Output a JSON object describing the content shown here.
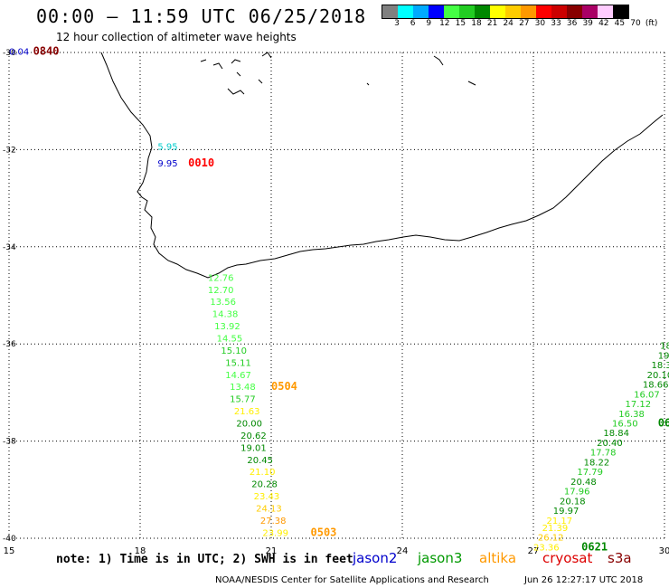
{
  "header": {
    "title": "00:00 – 11:59 UTC 06/25/2018",
    "subtitle": "12 hour collection of altimeter wave heights"
  },
  "legend": {
    "colors": [
      "#808080",
      "#00ffff",
      "#00aaff",
      "#0000ff",
      "#44ff44",
      "#22cc22",
      "#008800",
      "#ffff00",
      "#ffcc00",
      "#ff9900",
      "#ff0000",
      "#cc0000",
      "#880000",
      "#aa0066",
      "#ffccff",
      "#000000"
    ],
    "labels": [
      "3",
      "6",
      "9",
      "12",
      "15",
      "18",
      "21",
      "24",
      "27",
      "30",
      "33",
      "36",
      "39",
      "42",
      "45",
      "70",
      "(ft)"
    ]
  },
  "axes": {
    "lon_ticks": [
      "15",
      "18",
      "21",
      "24",
      "27",
      "30"
    ],
    "lat_ticks": [
      "-30",
      "-32",
      "-34",
      "-36",
      "-38",
      "-40"
    ]
  },
  "observations": [
    {
      "text": "0.04",
      "color": "#0000cc",
      "lon": 15.0,
      "lat": -30.05
    },
    {
      "text": "5.95",
      "color": "#00cccc",
      "lon": 18.4,
      "lat": -32.0
    },
    {
      "text": "9.95",
      "color": "#0000cc",
      "lon": 18.4,
      "lat": -32.35
    },
    {
      "text": "12.76",
      "color": "#44ff44",
      "lon": 19.55,
      "lat": -34.7
    },
    {
      "text": "12.70",
      "color": "#44ff44",
      "lon": 19.55,
      "lat": -34.95
    },
    {
      "text": "13.56",
      "color": "#44ff44",
      "lon": 19.6,
      "lat": -35.2
    },
    {
      "text": "14.38",
      "color": "#44ff44",
      "lon": 19.65,
      "lat": -35.45
    },
    {
      "text": "13.92",
      "color": "#44ff44",
      "lon": 19.7,
      "lat": -35.7
    },
    {
      "text": "14.55",
      "color": "#44ff44",
      "lon": 19.75,
      "lat": -35.95
    },
    {
      "text": "15.10",
      "color": "#22cc22",
      "lon": 19.85,
      "lat": -36.2
    },
    {
      "text": "15.11",
      "color": "#22cc22",
      "lon": 19.95,
      "lat": -36.45
    },
    {
      "text": "14.67",
      "color": "#44ff44",
      "lon": 19.95,
      "lat": -36.7
    },
    {
      "text": "13.48",
      "color": "#44ff44",
      "lon": 20.05,
      "lat": -36.95
    },
    {
      "text": "15.77",
      "color": "#22cc22",
      "lon": 20.05,
      "lat": -37.2
    },
    {
      "text": "21.63",
      "color": "#ffee00",
      "lon": 20.15,
      "lat": -37.45
    },
    {
      "text": "20.00",
      "color": "#008800",
      "lon": 20.2,
      "lat": -37.7
    },
    {
      "text": "20.62",
      "color": "#008800",
      "lon": 20.3,
      "lat": -37.95
    },
    {
      "text": "19.01",
      "color": "#008800",
      "lon": 20.3,
      "lat": -38.2
    },
    {
      "text": "20.45",
      "color": "#008800",
      "lon": 20.45,
      "lat": -38.45
    },
    {
      "text": "21.10",
      "color": "#ffee00",
      "lon": 20.5,
      "lat": -38.7
    },
    {
      "text": "20.28",
      "color": "#008800",
      "lon": 20.55,
      "lat": -38.95
    },
    {
      "text": "23.43",
      "color": "#ffee00",
      "lon": 20.6,
      "lat": -39.2
    },
    {
      "text": "24.13",
      "color": "#ffcc00",
      "lon": 20.65,
      "lat": -39.45
    },
    {
      "text": "27.38",
      "color": "#ff9900",
      "lon": 20.75,
      "lat": -39.7
    },
    {
      "text": "23.99",
      "color": "#ffee00",
      "lon": 20.8,
      "lat": -39.95
    },
    {
      "text": "18",
      "color": "#008800",
      "lon": 29.9,
      "lat": -36.1
    },
    {
      "text": "19.",
      "color": "#008800",
      "lon": 29.85,
      "lat": -36.3
    },
    {
      "text": "18.3",
      "color": "#008800",
      "lon": 29.7,
      "lat": -36.5
    },
    {
      "text": "20.10",
      "color": "#008800",
      "lon": 29.6,
      "lat": -36.7
    },
    {
      "text": "18.66",
      "color": "#008800",
      "lon": 29.5,
      "lat": -36.9
    },
    {
      "text": "16.07",
      "color": "#22cc22",
      "lon": 29.3,
      "lat": -37.1
    },
    {
      "text": "17.12",
      "color": "#22cc22",
      "lon": 29.1,
      "lat": -37.3
    },
    {
      "text": "16.38",
      "color": "#22cc22",
      "lon": 28.95,
      "lat": -37.5
    },
    {
      "text": "16.50",
      "color": "#22cc22",
      "lon": 28.8,
      "lat": -37.7
    },
    {
      "text": "18.84",
      "color": "#008800",
      "lon": 28.6,
      "lat": -37.9
    },
    {
      "text": "20.40",
      "color": "#008800",
      "lon": 28.45,
      "lat": -38.1
    },
    {
      "text": "17.78",
      "color": "#22cc22",
      "lon": 28.3,
      "lat": -38.3
    },
    {
      "text": "18.22",
      "color": "#008800",
      "lon": 28.15,
      "lat": -38.5
    },
    {
      "text": "17.79",
      "color": "#22cc22",
      "lon": 28.0,
      "lat": -38.7
    },
    {
      "text": "20.48",
      "color": "#008800",
      "lon": 27.85,
      "lat": -38.9
    },
    {
      "text": "17.96",
      "color": "#22cc22",
      "lon": 27.7,
      "lat": -39.1
    },
    {
      "text": "20.18",
      "color": "#008800",
      "lon": 27.6,
      "lat": -39.3
    },
    {
      "text": "19.97",
      "color": "#008800",
      "lon": 27.45,
      "lat": -39.5
    },
    {
      "text": "21.17",
      "color": "#ffee00",
      "lon": 27.3,
      "lat": -39.7
    },
    {
      "text": "21.39",
      "color": "#ffee00",
      "lon": 27.2,
      "lat": -39.85
    },
    {
      "text": "26.12",
      "color": "#ffcc00",
      "lon": 27.1,
      "lat": -40.05
    },
    {
      "text": "23.36",
      "color": "#ffee00",
      "lon": 27.0,
      "lat": -40.25
    }
  ],
  "pass_times": [
    {
      "text": "0840",
      "color": "#880000",
      "lon": 15.55,
      "lat": -30.05
    },
    {
      "text": "0010",
      "color": "#ff0000",
      "lon": 19.1,
      "lat": -32.35
    },
    {
      "text": "0504",
      "color": "#ff9900",
      "lon": 21.0,
      "lat": -36.95
    },
    {
      "text": "0503",
      "color": "#ff9900",
      "lon": 21.9,
      "lat": -39.95
    },
    {
      "text": "06",
      "color": "#008800",
      "lon": 29.85,
      "lat": -37.7
    },
    {
      "text": "0621",
      "color": "#008800",
      "lon": 28.1,
      "lat": -40.25
    }
  ],
  "note": "note: 1) Time is in UTC; 2) SWH is in feet",
  "satellites": [
    {
      "name": "jason2",
      "color": "#0000cc"
    },
    {
      "name": "jason3",
      "color": "#009900"
    },
    {
      "name": "altika",
      "color": "#ff9900"
    },
    {
      "name": "cryosat",
      "color": "#dd0000"
    },
    {
      "name": "s3a",
      "color": "#880000"
    }
  ],
  "footer": {
    "credit": "NOAA/NESDIS Center for Satellite Applications and Research",
    "generated": "Jun 26 12:27:17 UTC 2018"
  }
}
